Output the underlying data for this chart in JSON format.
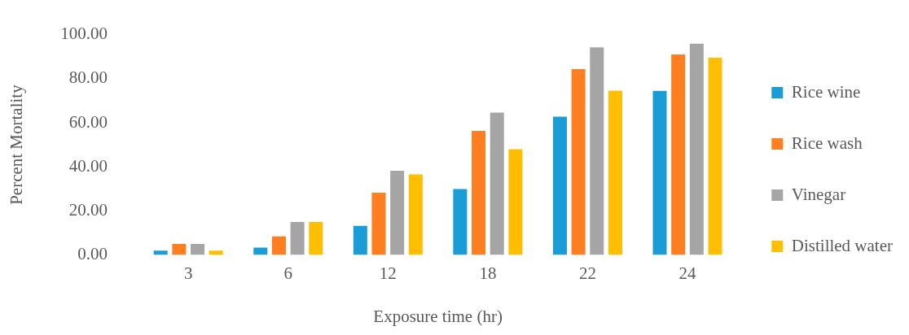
{
  "chart_data": {
    "type": "bar",
    "xlabel": "Exposure time (hr)",
    "ylabel": "Percent Mortality",
    "categories": [
      "3",
      "6",
      "12",
      "18",
      "22",
      "24"
    ],
    "series": [
      {
        "name": "Rice wine",
        "color": "#1a9dd6",
        "values": [
          2,
          3.4,
          13.2,
          29.9,
          62.8,
          74.5
        ]
      },
      {
        "name": "Rice wash",
        "color": "#ff7f20",
        "values": [
          5,
          8.4,
          28.3,
          56.3,
          84.4,
          91
        ]
      },
      {
        "name": "Vinegar",
        "color": "#a5a5a5",
        "values": [
          5,
          15,
          38.2,
          64.6,
          94.2,
          95.9
        ]
      },
      {
        "name": "Distilled water",
        "color": "#ffbf00",
        "values": [
          2,
          15,
          36.6,
          48,
          74.6,
          89.5
        ]
      }
    ],
    "ylim": [
      0,
      100
    ],
    "yticks": [
      {
        "value": 0,
        "label": "0.00"
      },
      {
        "value": 20,
        "label": "20.00"
      },
      {
        "value": 40,
        "label": "40.00"
      },
      {
        "value": 60,
        "label": "60.00"
      },
      {
        "value": 80,
        "label": "80.00"
      },
      {
        "value": 100,
        "label": "100.00"
      }
    ],
    "grid": false,
    "legend": "right"
  }
}
